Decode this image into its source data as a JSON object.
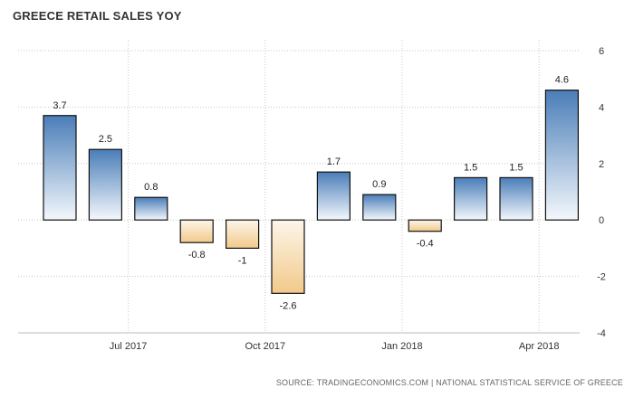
{
  "chart": {
    "title": "GREECE RETAIL SALES YOY",
    "source": "SOURCE: TRADINGECONOMICS.COM | NATIONAL STATISTICAL SERVICE OF GREECE"
  },
  "colors": {
    "positive_top": "#4a7db8",
    "positive_bottom": "#f4f8fc",
    "negative_top": "#fdf6ea",
    "negative_bottom": "#f2c98a",
    "grid": "#c8c8c8",
    "bar_outline": "#111111"
  },
  "chart_data": {
    "type": "bar",
    "title": "GREECE RETAIL SALES YOY",
    "xlabel": "",
    "ylabel": "",
    "values": [
      3.7,
      2.5,
      0.8,
      -0.8,
      -1,
      -2.6,
      1.7,
      0.9,
      -0.4,
      1.5,
      1.5,
      4.6
    ],
    "value_labels": [
      "3.7",
      "2.5",
      "0.8",
      "-0.8",
      "-1",
      "-2.6",
      "1.7",
      "0.9",
      "-0.4",
      "1.5",
      "1.5",
      "4.6"
    ],
    "x_tick_labels": [
      "Jul 2017",
      "Oct 2017",
      "Jan 2018",
      "Apr 2018"
    ],
    "x_tick_bar_index": [
      1.5,
      4.5,
      7.5,
      10.5
    ],
    "ylim": [
      -4,
      6
    ],
    "y_ticks": [
      6,
      4,
      2,
      0,
      -2,
      -4
    ],
    "y_axis_side": "right",
    "grid": true
  }
}
